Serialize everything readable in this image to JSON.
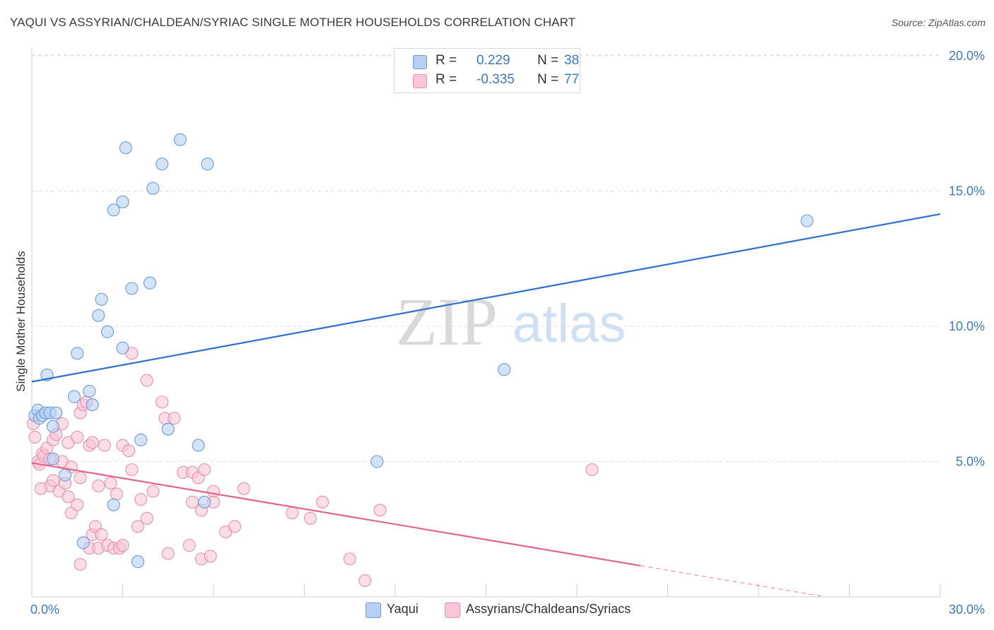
{
  "title": "YAQUI VS ASSYRIAN/CHALDEAN/SYRIAC SINGLE MOTHER HOUSEHOLDS CORRELATION CHART",
  "source": "Source: ZipAtlas.com",
  "watermark": {
    "zip": "ZIP",
    "atlas": "atlas"
  },
  "legend_top": {
    "rows": [
      {
        "r_label": "R =",
        "r_value": "0.229",
        "n_label": "N =",
        "n_value": "38"
      },
      {
        "r_label": "R =",
        "r_value": "-0.335",
        "n_label": "N =",
        "n_value": "77"
      }
    ]
  },
  "colors": {
    "blue_fill": "#b7d0f2",
    "blue_stroke": "#6c9be0",
    "blue_line": "#2f6fcf",
    "pink_fill": "#f8c6d6",
    "pink_stroke": "#ec8fb0",
    "pink_line": "#e4638f",
    "axis_text": "#3b78c8",
    "grid": "#e2e2e2"
  },
  "chart_data": {
    "type": "scatter",
    "title": "YAQUI VS ASSYRIAN/CHALDEAN/SYRIAC SINGLE MOTHER HOUSEHOLDS CORRELATION CHART",
    "xlabel": "",
    "ylabel": "Single Mother Households",
    "xlim": [
      0,
      30
    ],
    "ylim": [
      0,
      20.5
    ],
    "x_ticks": [
      0,
      30
    ],
    "x_tick_labels": [
      "0.0%",
      "30.0%"
    ],
    "y_ticks": [
      5,
      10,
      15,
      20
    ],
    "y_tick_labels": [
      "5.0%",
      "10.0%",
      "15.0%",
      "20.0%"
    ],
    "grid": true,
    "legend_position": "top-center",
    "series": [
      {
        "name": "Yaqui",
        "color": "blue",
        "r": 0.229,
        "n": 38,
        "trend": {
          "x": [
            0,
            30
          ],
          "y": [
            7.95,
            14.15
          ]
        },
        "points": [
          [
            0.1,
            6.7
          ],
          [
            0.2,
            6.9
          ],
          [
            0.25,
            6.6
          ],
          [
            0.35,
            6.7
          ],
          [
            0.45,
            6.8
          ],
          [
            0.6,
            6.8
          ],
          [
            0.8,
            6.8
          ],
          [
            0.5,
            8.2
          ],
          [
            0.7,
            6.3
          ],
          [
            0.7,
            5.1
          ],
          [
            1.1,
            4.5
          ],
          [
            1.4,
            7.4
          ],
          [
            1.5,
            9.0
          ],
          [
            1.9,
            7.6
          ],
          [
            2.0,
            7.1
          ],
          [
            2.2,
            10.4
          ],
          [
            2.3,
            11.0
          ],
          [
            2.5,
            9.8
          ],
          [
            2.7,
            3.4
          ],
          [
            2.7,
            14.3
          ],
          [
            3.0,
            14.6
          ],
          [
            3.0,
            9.2
          ],
          [
            3.1,
            16.6
          ],
          [
            3.3,
            11.4
          ],
          [
            3.5,
            1.3
          ],
          [
            3.6,
            5.8
          ],
          [
            3.9,
            11.6
          ],
          [
            4.0,
            15.1
          ],
          [
            4.3,
            16.0
          ],
          [
            4.5,
            6.2
          ],
          [
            4.9,
            16.9
          ],
          [
            5.5,
            5.6
          ],
          [
            5.7,
            3.5
          ],
          [
            5.8,
            16.0
          ],
          [
            11.4,
            5.0
          ],
          [
            15.6,
            8.4
          ],
          [
            1.7,
            2.0
          ],
          [
            25.6,
            13.9
          ]
        ]
      },
      {
        "name": "Assyrians/Chaldeans/Syriacs",
        "color": "pink",
        "r": -0.335,
        "n": 77,
        "trend": {
          "x": [
            0,
            20.1
          ],
          "y": [
            4.95,
            1.15
          ]
        },
        "trend_dashed": {
          "x": [
            20.1,
            26.1
          ],
          "y": [
            1.15,
            0.02
          ]
        },
        "points": [
          [
            0.05,
            6.4
          ],
          [
            0.1,
            5.9
          ],
          [
            0.2,
            5.0
          ],
          [
            0.25,
            4.9
          ],
          [
            0.35,
            5.3
          ],
          [
            0.4,
            5.2
          ],
          [
            0.5,
            5.5
          ],
          [
            0.6,
            5.1
          ],
          [
            0.6,
            4.1
          ],
          [
            0.7,
            5.8
          ],
          [
            0.7,
            4.3
          ],
          [
            0.8,
            6.0
          ],
          [
            0.9,
            3.9
          ],
          [
            1.0,
            5.0
          ],
          [
            1.0,
            6.4
          ],
          [
            1.1,
            4.2
          ],
          [
            1.2,
            5.7
          ],
          [
            1.2,
            3.7
          ],
          [
            1.3,
            3.1
          ],
          [
            1.3,
            4.8
          ],
          [
            1.5,
            3.4
          ],
          [
            1.5,
            5.9
          ],
          [
            1.6,
            6.8
          ],
          [
            1.6,
            4.4
          ],
          [
            1.7,
            7.1
          ],
          [
            1.8,
            7.2
          ],
          [
            1.9,
            5.6
          ],
          [
            1.9,
            1.8
          ],
          [
            2.0,
            5.7
          ],
          [
            2.0,
            2.3
          ],
          [
            2.1,
            2.6
          ],
          [
            2.2,
            1.8
          ],
          [
            2.2,
            4.1
          ],
          [
            2.3,
            2.3
          ],
          [
            2.4,
            5.6
          ],
          [
            2.5,
            1.9
          ],
          [
            2.6,
            4.2
          ],
          [
            2.7,
            1.8
          ],
          [
            2.8,
            3.8
          ],
          [
            2.9,
            1.8
          ],
          [
            3.0,
            5.6
          ],
          [
            3.0,
            1.9
          ],
          [
            3.2,
            5.4
          ],
          [
            3.3,
            4.7
          ],
          [
            3.3,
            9.0
          ],
          [
            3.5,
            2.6
          ],
          [
            3.6,
            3.6
          ],
          [
            3.8,
            2.9
          ],
          [
            3.8,
            8.0
          ],
          [
            4.0,
            3.9
          ],
          [
            4.3,
            7.2
          ],
          [
            4.4,
            6.6
          ],
          [
            4.5,
            1.6
          ],
          [
            4.7,
            6.6
          ],
          [
            5.0,
            4.6
          ],
          [
            5.2,
            1.9
          ],
          [
            5.3,
            3.5
          ],
          [
            5.3,
            4.6
          ],
          [
            5.5,
            4.4
          ],
          [
            5.6,
            1.4
          ],
          [
            5.6,
            3.2
          ],
          [
            5.7,
            4.7
          ],
          [
            5.9,
            1.5
          ],
          [
            6.0,
            3.9
          ],
          [
            6.0,
            3.5
          ],
          [
            6.4,
            2.4
          ],
          [
            6.7,
            2.6
          ],
          [
            7.0,
            4.0
          ],
          [
            8.6,
            3.1
          ],
          [
            9.2,
            2.9
          ],
          [
            9.6,
            3.5
          ],
          [
            10.5,
            1.4
          ],
          [
            11.0,
            0.6
          ],
          [
            11.5,
            3.2
          ],
          [
            18.5,
            4.7
          ],
          [
            1.6,
            1.2
          ],
          [
            0.3,
            4.0
          ]
        ]
      }
    ]
  },
  "legend_bottom": {
    "items": [
      {
        "label": "Yaqui"
      },
      {
        "label": "Assyrians/Chaldeans/Syriacs"
      }
    ]
  }
}
